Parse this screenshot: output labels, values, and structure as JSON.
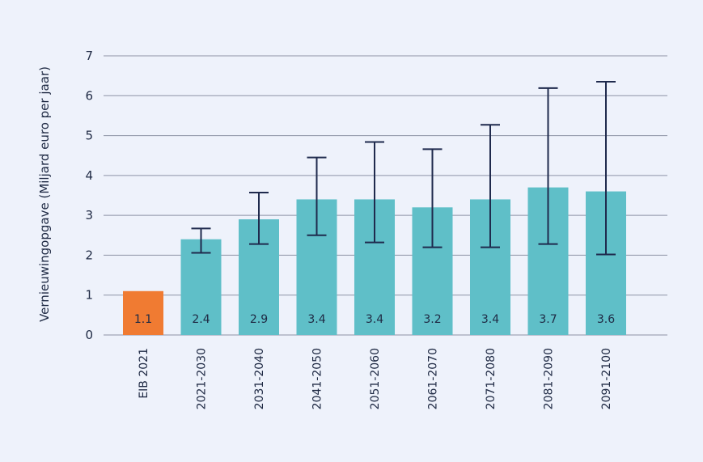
{
  "chart_data": {
    "type": "bar",
    "title": "",
    "xlabel": "",
    "ylabel": "Vernieuwingopgave (Miljard euro per jaar)",
    "ylim": [
      0,
      7
    ],
    "yticks": [
      "0",
      "1",
      "2",
      "3",
      "4",
      "5",
      "6",
      "7"
    ],
    "grid": true,
    "categories": [
      "EIB 2021",
      "2021-2030",
      "2031-2040",
      "2041-2050",
      "2051-2060",
      "2061-2070",
      "2071-2080",
      "2081-2090",
      "2091-2100"
    ],
    "values": [
      1.1,
      2.4,
      2.9,
      3.4,
      3.4,
      3.2,
      3.4,
      3.7,
      3.6
    ],
    "labels": [
      "1.1",
      "2.4",
      "2.9",
      "3.4",
      "3.4",
      "3.2",
      "3.4",
      "3.7",
      "3.6"
    ],
    "error_low": [
      null,
      2.06,
      2.28,
      2.5,
      2.32,
      2.2,
      2.2,
      2.28,
      2.02
    ],
    "error_high": [
      null,
      2.67,
      3.57,
      4.45,
      4.84,
      4.66,
      5.27,
      6.19,
      6.35
    ],
    "colors": {
      "highlight": "#f07b32",
      "bar": "#5fbfc8",
      "error": "#1f2a4d"
    },
    "highlight_index": 0
  }
}
